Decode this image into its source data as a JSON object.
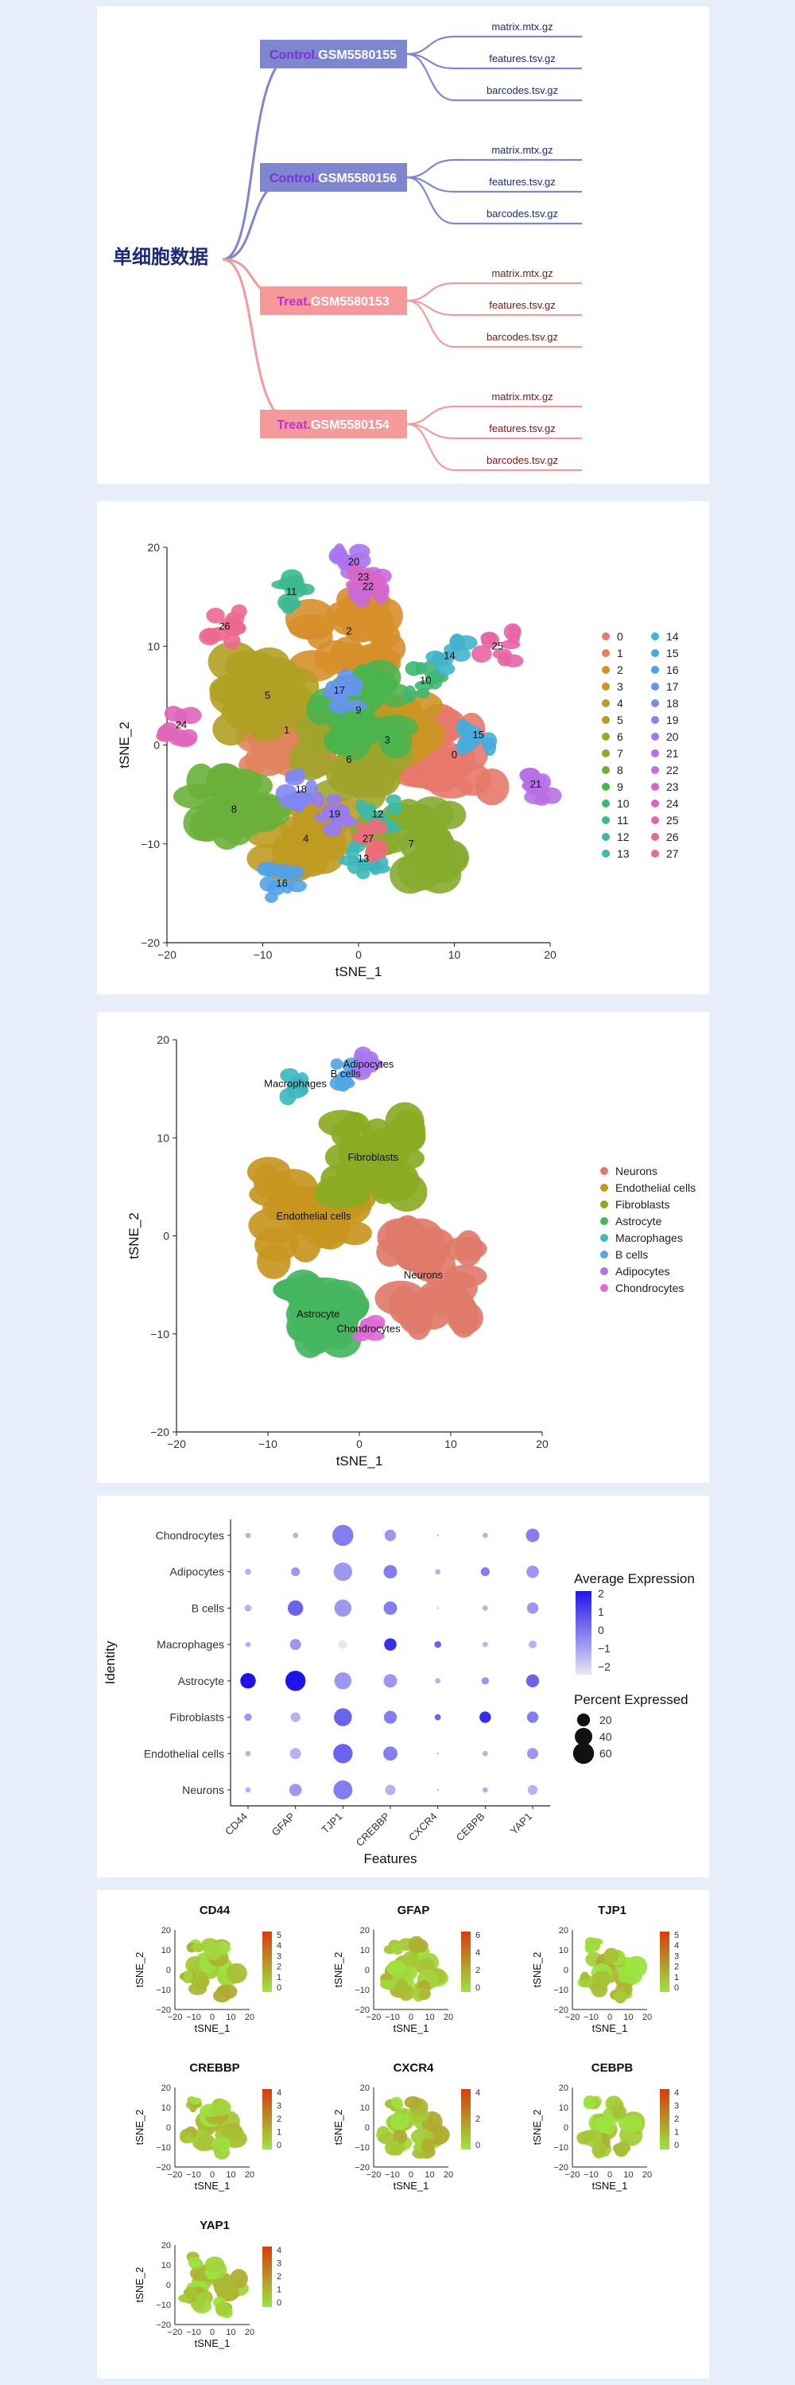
{
  "tree": {
    "root_label": "单细胞数据",
    "groups": [
      {
        "prefix": "Control.",
        "id": "GSM5580155",
        "files": [
          "matrix.mtx.gz",
          "features.tsv.gz",
          "barcodes.tsv.gz"
        ]
      },
      {
        "prefix": "Control.",
        "id": "GSM5580156",
        "files": [
          "matrix.mtx.gz",
          "features.tsv.gz",
          "barcodes.tsv.gz"
        ]
      },
      {
        "prefix": "Treat.",
        "id": "GSM5580153",
        "files": [
          "matrix.mtx.gz",
          "features.tsv.gz",
          "barcodes.tsv.gz"
        ]
      },
      {
        "prefix": "Treat.",
        "id": "GSM5580154",
        "files": [
          "matrix.mtx.gz",
          "features.tsv.gz",
          "barcodes.tsv.gz"
        ]
      }
    ],
    "colors": {
      "control": "#7f86d0",
      "treat": "#f59a9a",
      "prefix_control": "#7a2fd8",
      "prefix_treat": "#c22fd0",
      "root": "#1c2a78"
    }
  },
  "chart_data": [
    {
      "type": "scatter",
      "name": "tsne-clusters",
      "xlabel": "tSNE_1",
      "ylabel": "tSNE_2",
      "xlim": [
        -20,
        20
      ],
      "ylim": [
        -20,
        20
      ],
      "xticks": [
        "−20",
        "−10",
        "0",
        "10",
        "20"
      ],
      "yticks": [
        "20",
        "10",
        "0",
        "−10",
        "−20"
      ],
      "legend_position": "right",
      "clusters": [
        {
          "label": "0",
          "x": 10,
          "y": -1,
          "color": "#e8786b"
        },
        {
          "label": "1",
          "x": -7.5,
          "y": 1.5,
          "color": "#e0845e"
        },
        {
          "label": "2",
          "x": -1,
          "y": 11.5,
          "color": "#d78f2a"
        },
        {
          "label": "3",
          "x": 3,
          "y": 0.5,
          "color": "#cb9523"
        },
        {
          "label": "4",
          "x": -5.5,
          "y": -9.5,
          "color": "#bf9b21"
        },
        {
          "label": "5",
          "x": -9.5,
          "y": 5,
          "color": "#b0a023"
        },
        {
          "label": "6",
          "x": -1,
          "y": -1.5,
          "color": "#9ea52b"
        },
        {
          "label": "7",
          "x": 5.5,
          "y": -10,
          "color": "#86ab2e"
        },
        {
          "label": "8",
          "x": -13,
          "y": -6.5,
          "color": "#6ab03a"
        },
        {
          "label": "9",
          "x": 0,
          "y": 3.5,
          "color": "#4cb44c"
        },
        {
          "label": "10",
          "x": 7,
          "y": 6.5,
          "color": "#40b673"
        },
        {
          "label": "11",
          "x": -7,
          "y": 15.5,
          "color": "#3db891"
        },
        {
          "label": "12",
          "x": 2,
          "y": -7,
          "color": "#3cb9a6"
        },
        {
          "label": "13",
          "x": 0.5,
          "y": -11.5,
          "color": "#3db8b9"
        },
        {
          "label": "14",
          "x": 9.5,
          "y": 9,
          "color": "#41b4cb"
        },
        {
          "label": "15",
          "x": 12.5,
          "y": 1,
          "color": "#47acdc"
        },
        {
          "label": "16",
          "x": -8,
          "y": -14,
          "color": "#52a2e8"
        },
        {
          "label": "17",
          "x": -2,
          "y": 5.5,
          "color": "#6694f0"
        },
        {
          "label": "18",
          "x": -6,
          "y": -4.5,
          "color": "#7f87f3"
        },
        {
          "label": "19",
          "x": -2.5,
          "y": -7,
          "color": "#977bf2"
        },
        {
          "label": "20",
          "x": -0.5,
          "y": 18.5,
          "color": "#a874ee"
        },
        {
          "label": "21",
          "x": 18.5,
          "y": -4,
          "color": "#b86fe6"
        },
        {
          "label": "22",
          "x": 1,
          "y": 16,
          "color": "#c86ad9"
        },
        {
          "label": "23",
          "x": 0.5,
          "y": 17,
          "color": "#d567ca"
        },
        {
          "label": "24",
          "x": -18.5,
          "y": 2,
          "color": "#df65b8"
        },
        {
          "label": "25",
          "x": 14.5,
          "y": 10,
          "color": "#e765a4"
        },
        {
          "label": "26",
          "x": -14,
          "y": 12,
          "color": "#ec688f"
        },
        {
          "label": "27",
          "x": 1,
          "y": -9.5,
          "color": "#ec6d7b"
        }
      ]
    },
    {
      "type": "scatter",
      "name": "tsne-celltypes",
      "xlabel": "tSNE_1",
      "ylabel": "tSNE_2",
      "xlim": [
        -20,
        20
      ],
      "ylim": [
        -20,
        20
      ],
      "xticks": [
        "−20",
        "−10",
        "0",
        "10",
        "20"
      ],
      "yticks": [
        "20",
        "10",
        "0",
        "−10",
        "−20"
      ],
      "legend_position": "right",
      "celltypes": [
        {
          "label": "Neurons",
          "color": "#e07b6b",
          "x": 7,
          "y": -4
        },
        {
          "label": "Endothelial cells",
          "color": "#c8961f",
          "x": -5,
          "y": 2
        },
        {
          "label": "Fibroblasts",
          "color": "#8aaa23",
          "x": 1.5,
          "y": 8
        },
        {
          "label": "Astrocyte",
          "color": "#45b560",
          "x": -4.5,
          "y": -8
        },
        {
          "label": "Macrophages",
          "color": "#3db9c0",
          "x": -7,
          "y": 15.5
        },
        {
          "label": "B cells",
          "color": "#55a6e3",
          "x": -1.5,
          "y": 16.5
        },
        {
          "label": "Adipocytes",
          "color": "#a879ee",
          "x": 1,
          "y": 17.5
        },
        {
          "label": "Chondrocytes",
          "color": "#e06ad6",
          "x": 1,
          "y": -9.5
        }
      ]
    },
    {
      "type": "dot",
      "name": "dotplot",
      "xlabel": "Features",
      "ylabel": "Identity",
      "features": [
        "CD44",
        "GFAP",
        "TJP1",
        "CREBBP",
        "CXCR4",
        "CEBPB",
        "YAP1"
      ],
      "identities": [
        "Chondrocytes",
        "Adipocytes",
        "B cells",
        "Macrophages",
        "Astrocyte",
        "Fibroblasts",
        "Endothelial cells",
        "Neurons"
      ],
      "percent_expressed": [
        [
          2,
          2,
          60,
          15,
          1,
          2,
          22
        ],
        [
          3,
          8,
          45,
          22,
          2,
          8,
          18
        ],
        [
          4,
          30,
          38,
          22,
          1,
          2,
          15
        ],
        [
          2,
          14,
          8,
          18,
          4,
          2,
          6
        ],
        [
          30,
          55,
          38,
          22,
          2,
          5,
          20
        ],
        [
          5,
          10,
          42,
          20,
          3,
          15,
          15
        ],
        [
          2,
          14,
          50,
          25,
          1,
          2,
          14
        ],
        [
          2,
          18,
          48,
          12,
          1,
          2,
          10
        ]
      ],
      "average_expression": [
        [
          -1,
          -1,
          0,
          -0.5,
          -1,
          -1,
          0
        ],
        [
          -1,
          -0.5,
          -0.5,
          0,
          -1,
          0,
          -0.5
        ],
        [
          -1,
          0.5,
          -0.5,
          0,
          -1,
          -1,
          -0.5
        ],
        [
          -1,
          -0.5,
          -2,
          1.5,
          0.5,
          -1,
          -1
        ],
        [
          2,
          2,
          -0.5,
          -0.5,
          -1,
          -0.5,
          0.5
        ],
        [
          -0.5,
          -1,
          0.5,
          0,
          0.5,
          1.5,
          0
        ],
        [
          -1,
          -1,
          0.5,
          0,
          -1,
          -1,
          -0.5
        ],
        [
          -1,
          -0.5,
          0,
          -1,
          -1,
          -1,
          -1
        ]
      ],
      "color_legend": {
        "title": "Average Expression",
        "ticks": [
          "2",
          "1",
          "0",
          "−1",
          "−2"
        ],
        "low": "#e8e6f5",
        "high": "#1f14e8"
      },
      "size_legend": {
        "title": "Percent Expressed",
        "values": [
          20,
          40,
          60
        ]
      }
    },
    {
      "type": "feature-plots",
      "name": "feature-plots",
      "xlabel": "tSNE_1",
      "ylabel": "tSNE_2",
      "xticks": [
        "−20",
        "−10",
        "0",
        "10",
        "20"
      ],
      "yticks": [
        "20",
        "10",
        "0",
        "−10",
        "−20"
      ],
      "colors": {
        "low": "#9be640",
        "high": "#d83c10"
      },
      "genes": [
        {
          "gene": "CD44",
          "scale": [
            "5",
            "4",
            "3",
            "2",
            "1",
            "0"
          ]
        },
        {
          "gene": "GFAP",
          "scale": [
            "6",
            "4",
            "2",
            "0"
          ]
        },
        {
          "gene": "TJP1",
          "scale": [
            "5",
            "4",
            "3",
            "2",
            "1",
            "0"
          ]
        },
        {
          "gene": "CREBBP",
          "scale": [
            "4",
            "3",
            "2",
            "1",
            "0"
          ]
        },
        {
          "gene": "CXCR4",
          "scale": [
            "4",
            "2",
            "0"
          ]
        },
        {
          "gene": "CEBPB",
          "scale": [
            "4",
            "3",
            "2",
            "1",
            "0"
          ]
        },
        {
          "gene": "YAP1",
          "scale": [
            "4",
            "3",
            "2",
            "1",
            "0"
          ]
        }
      ]
    }
  ]
}
